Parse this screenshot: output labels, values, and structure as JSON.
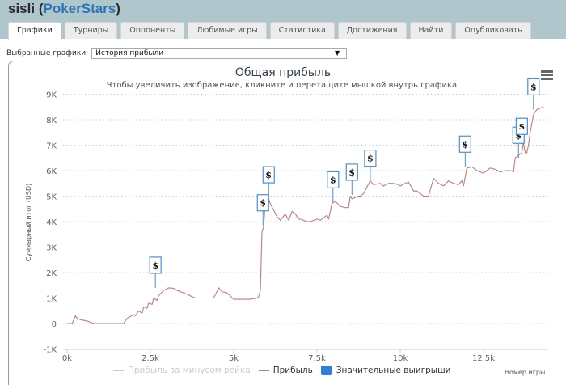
{
  "header": {
    "player": "sisli",
    "site": "PokerStars",
    "open_paren": " (",
    "close_paren": ")"
  },
  "tabs": [
    {
      "label": "Графики",
      "active": true
    },
    {
      "label": "Турниры"
    },
    {
      "label": "Оппоненты"
    },
    {
      "label": "Любимые игры"
    },
    {
      "label": "Статистика"
    },
    {
      "label": "Достижения"
    },
    {
      "label": "Найти"
    },
    {
      "label": "Опубликовать"
    }
  ],
  "selector": {
    "label": "Выбранные графики:",
    "value": "История прибыли",
    "arrow": "▼"
  },
  "chart": {
    "title": "Общая прибыль",
    "subtitle": "Чтобы увеличить изображение, кликните и перетащите мышкой внутрь графика.",
    "menu_icon": "hamburger-menu-icon",
    "marker_label": "$"
  },
  "legend": {
    "items": [
      {
        "label": "Прибыль за минусом рейка",
        "color": "#cccccc",
        "visible": false
      },
      {
        "label": "Прибыль",
        "color": "#c47a7a",
        "visible": true
      },
      {
        "label": "Значительные выигрыши",
        "color": "#2f7ed8",
        "visible": true
      }
    ]
  },
  "colors": {
    "profit_line": "#c47a7a",
    "marker_border": "#4a8fd6",
    "grid": "#cccccc",
    "header_bg": "#b0c6cd",
    "site_link": "#2f74b5"
  },
  "chart_data": {
    "type": "line",
    "title": "Общая прибыль",
    "subtitle": "Чтобы увеличить изображение, кликните и перетащите мышкой внутрь графика.",
    "xlabel": "Номер игры",
    "ylabel": "Суммарный итог (USD)",
    "xlim": [
      0,
      14400
    ],
    "ylim": [
      -1000,
      9000
    ],
    "grid": true,
    "legend_position": "bottom",
    "x_ticks": [
      "0k",
      "2.5k",
      "5k",
      "7.5k",
      "10k",
      "12.5k"
    ],
    "x_tick_values": [
      0,
      2500,
      5000,
      7500,
      10000,
      12500
    ],
    "y_ticks": [
      "-1K",
      "0",
      "1K",
      "2K",
      "3K",
      "4K",
      "5K",
      "6K",
      "7K",
      "8K",
      "9K"
    ],
    "y_tick_values": [
      -1000,
      0,
      1000,
      2000,
      3000,
      4000,
      5000,
      6000,
      7000,
      8000,
      9000
    ],
    "series": [
      {
        "name": "Прибыль",
        "x": [
          0,
          150,
          250,
          300,
          400,
          600,
          800,
          1000,
          1050,
          1150,
          1300,
          1700,
          1800,
          2000,
          2050,
          2150,
          2250,
          2300,
          2400,
          2450,
          2550,
          2600,
          2700,
          2750,
          2900,
          3050,
          3200,
          3300,
          3400,
          3500,
          3600,
          3750,
          3850,
          4200,
          4300,
          4400,
          4550,
          4650,
          4800,
          5000,
          5200,
          5500,
          5700,
          5750,
          5800,
          5850,
          5900,
          5950,
          6050,
          6100,
          6200,
          6300,
          6400,
          6550,
          6650,
          6750,
          6850,
          6950,
          7000,
          7100,
          7200,
          7300,
          7500,
          7600,
          7800,
          7850,
          7950,
          8050,
          8200,
          8350,
          8450,
          8500,
          8550,
          8650,
          8750,
          8800,
          8900,
          9100,
          9200,
          9400,
          9500,
          9650,
          9800,
          9950,
          10000,
          10150,
          10250,
          10400,
          10500,
          10600,
          10700,
          10800,
          10850,
          11000,
          11150,
          11300,
          11450,
          11600,
          11750,
          11850,
          11900,
          12000,
          12150,
          12300,
          12500,
          12700,
          12850,
          13000,
          13150,
          13300,
          13400,
          13450,
          13550,
          13650,
          13700,
          13750,
          13800,
          13850,
          13900,
          14000,
          14100,
          14200,
          14300
        ],
        "values": [
          0,
          0,
          300,
          200,
          150,
          100,
          0,
          0,
          0,
          0,
          0,
          0,
          200,
          350,
          300,
          500,
          400,
          650,
          600,
          800,
          750,
          1000,
          900,
          1100,
          1300,
          1400,
          1380,
          1300,
          1250,
          1200,
          1150,
          1050,
          1000,
          1000,
          1000,
          1000,
          1400,
          1250,
          1200,
          950,
          950,
          950,
          1000,
          1050,
          1300,
          3600,
          3800,
          4800,
          4900,
          4700,
          4450,
          4200,
          4050,
          4300,
          4050,
          4400,
          4300,
          4100,
          4100,
          4050,
          4000,
          4000,
          4100,
          4050,
          4250,
          4100,
          4700,
          4800,
          4600,
          4550,
          4550,
          5000,
          4900,
          4950,
          5000,
          5000,
          5100,
          5600,
          5450,
          5500,
          5400,
          5500,
          5500,
          5450,
          5400,
          5500,
          5550,
          5200,
          5200,
          5100,
          5000,
          5000,
          5000,
          5700,
          5500,
          5400,
          5600,
          5500,
          5450,
          5600,
          5400,
          6100,
          6150,
          6000,
          5900,
          6100,
          6050,
          5950,
          6000,
          6000,
          5950,
          6500,
          6600,
          6700,
          7100,
          6700,
          6700,
          7000,
          7500,
          8200,
          8400,
          8450,
          8500
        ]
      }
    ],
    "significant_wins": [
      {
        "x": 2650,
        "y": 1400
      },
      {
        "x": 5880,
        "y": 3850
      },
      {
        "x": 6050,
        "y": 4950
      },
      {
        "x": 7980,
        "y": 4750
      },
      {
        "x": 8550,
        "y": 5050
      },
      {
        "x": 9100,
        "y": 5600
      },
      {
        "x": 11950,
        "y": 6150
      },
      {
        "x": 13550,
        "y": 6500
      },
      {
        "x": 13650,
        "y": 6850
      },
      {
        "x": 14000,
        "y": 8400
      }
    ]
  }
}
